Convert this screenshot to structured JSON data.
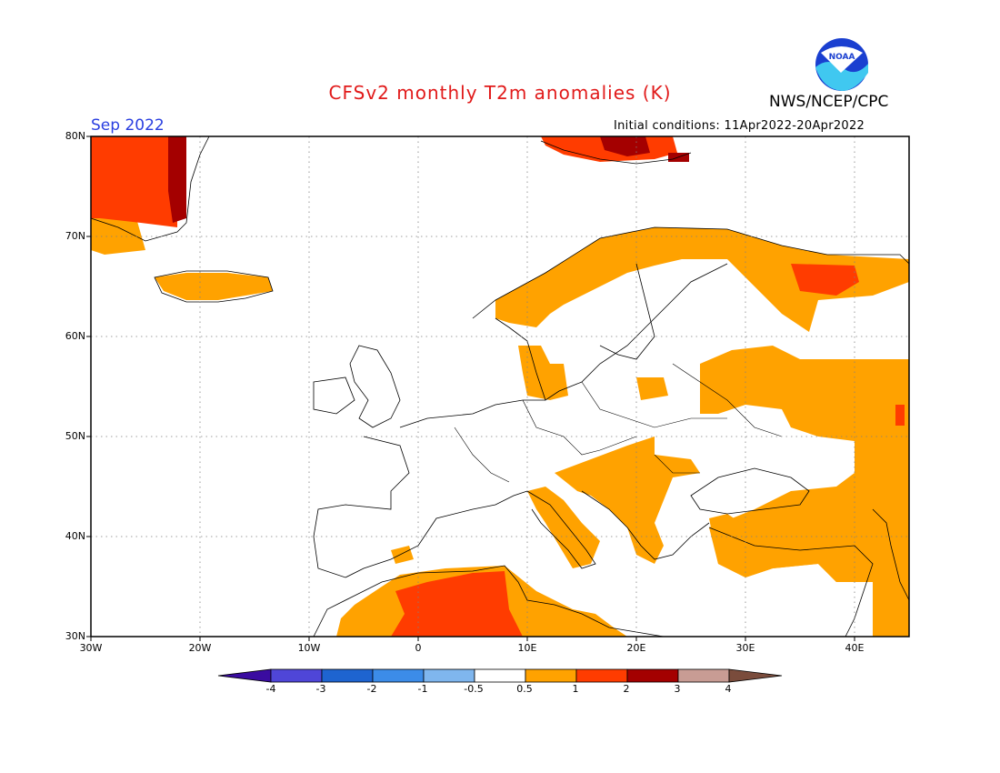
{
  "title": "CFSv2 monthly T2m anomalies (K)",
  "agency": "NWS/NCEP/CPC",
  "target_month": "Sep 2022",
  "initial_conditions": "Initial conditions: 11Apr2022-20Apr2022",
  "logo_text": "NOAA",
  "map": {
    "lat_range": [
      30,
      80
    ],
    "lon_range": [
      -30,
      45
    ],
    "lat_labels": [
      "80N",
      "70N",
      "60N",
      "50N",
      "40N",
      "30N"
    ],
    "lon_labels": [
      "30W",
      "20W",
      "10W",
      "0",
      "10E",
      "20E",
      "30E",
      "40E"
    ]
  },
  "colorbar": {
    "labels": [
      "-4",
      "-3",
      "-2",
      "-1",
      "-0.5",
      "0.5",
      "1",
      "2",
      "3",
      "4"
    ],
    "colors": [
      "#3a0ca0",
      "#4f46d8",
      "#1e64d0",
      "#3c8ce8",
      "#7fb6ee",
      "#ffffff",
      "#ffa200",
      "#ff3c00",
      "#a40000",
      "#c89c94",
      "#7a4c3c"
    ]
  }
}
